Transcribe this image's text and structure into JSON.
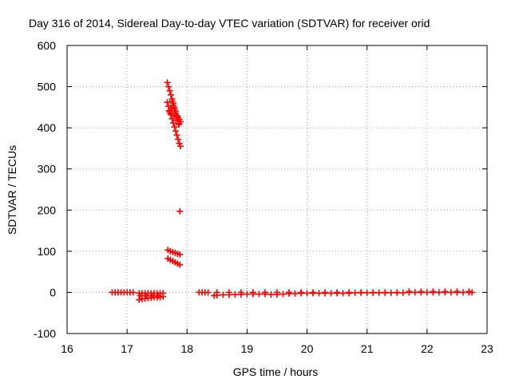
{
  "chart_data": {
    "type": "scatter",
    "title": "Day 316 of 2014, Sidereal Day-to-day VTEC variation (SDTVAR) for receiver orid",
    "xlabel": "GPS time / hours",
    "ylabel": "SDTVAR / TECUs",
    "xlim": [
      16,
      23
    ],
    "ylim": [
      -100,
      600
    ],
    "xticks": [
      "16",
      "17",
      "18",
      "19",
      "20",
      "21",
      "22",
      "23"
    ],
    "yticks": [
      "-100",
      "0",
      "100",
      "200",
      "300",
      "400",
      "500",
      "600"
    ],
    "grid": true,
    "legend": "none",
    "marker": "plus",
    "series": [
      {
        "color": "#ff0000",
        "points": [
          [
            16.75,
            0
          ],
          [
            16.8,
            0
          ],
          [
            16.85,
            0
          ],
          [
            16.9,
            0
          ],
          [
            16.95,
            0
          ],
          [
            17.0,
            0
          ],
          [
            17.05,
            0
          ],
          [
            17.1,
            0
          ],
          [
            17.2,
            -18
          ],
          [
            17.25,
            -16
          ],
          [
            17.3,
            -15
          ],
          [
            17.35,
            -14
          ],
          [
            17.4,
            -13
          ],
          [
            17.45,
            -12
          ],
          [
            17.5,
            -12
          ],
          [
            17.55,
            -12
          ],
          [
            17.6,
            -10
          ],
          [
            17.2,
            -2
          ],
          [
            17.25,
            -2
          ],
          [
            17.3,
            -2
          ],
          [
            17.35,
            -2
          ],
          [
            17.4,
            -2
          ],
          [
            17.45,
            -2
          ],
          [
            17.5,
            -2
          ],
          [
            17.55,
            -2
          ],
          [
            17.6,
            -2
          ],
          [
            17.22,
            -8
          ],
          [
            17.32,
            -8
          ],
          [
            17.42,
            -8
          ],
          [
            17.52,
            -8
          ],
          [
            17.67,
            510
          ],
          [
            17.69,
            500
          ],
          [
            17.71,
            490
          ],
          [
            17.73,
            480
          ],
          [
            17.75,
            470
          ],
          [
            17.77,
            460
          ],
          [
            17.79,
            450
          ],
          [
            17.81,
            440
          ],
          [
            17.83,
            430
          ],
          [
            17.85,
            420
          ],
          [
            17.87,
            410
          ],
          [
            17.67,
            462
          ],
          [
            17.69,
            452
          ],
          [
            17.71,
            442
          ],
          [
            17.73,
            432
          ],
          [
            17.75,
            422
          ],
          [
            17.77,
            412
          ],
          [
            17.79,
            402
          ],
          [
            17.81,
            392
          ],
          [
            17.83,
            382
          ],
          [
            17.85,
            372
          ],
          [
            17.87,
            362
          ],
          [
            17.89,
            355
          ],
          [
            17.75,
            465
          ],
          [
            17.77,
            455
          ],
          [
            17.79,
            445
          ],
          [
            17.81,
            435
          ],
          [
            17.83,
            428
          ],
          [
            17.85,
            425
          ],
          [
            17.87,
            420
          ],
          [
            17.89,
            415
          ],
          [
            17.7,
            440
          ],
          [
            17.72,
            436
          ],
          [
            17.74,
            448
          ],
          [
            17.78,
            430
          ],
          [
            17.82,
            418
          ],
          [
            17.86,
            408
          ],
          [
            17.88,
            197
          ],
          [
            17.68,
            103
          ],
          [
            17.72,
            100
          ],
          [
            17.76,
            98
          ],
          [
            17.8,
            96
          ],
          [
            17.84,
            94
          ],
          [
            17.88,
            92
          ],
          [
            17.68,
            82
          ],
          [
            17.72,
            79
          ],
          [
            17.76,
            76
          ],
          [
            17.8,
            73
          ],
          [
            17.84,
            70
          ],
          [
            17.88,
            67
          ],
          [
            18.2,
            0
          ],
          [
            18.25,
            0
          ],
          [
            18.3,
            0
          ],
          [
            18.35,
            0
          ],
          [
            18.45,
            -8
          ],
          [
            18.5,
            -7
          ],
          [
            18.6,
            -6
          ],
          [
            18.7,
            -6
          ],
          [
            18.8,
            -5
          ],
          [
            18.9,
            -5
          ],
          [
            19.0,
            -4
          ],
          [
            19.1,
            -4
          ],
          [
            19.2,
            -4
          ],
          [
            19.3,
            -4
          ],
          [
            19.4,
            -5
          ],
          [
            19.5,
            -5
          ],
          [
            19.6,
            -4
          ],
          [
            19.7,
            -3
          ],
          [
            19.8,
            -3
          ],
          [
            19.9,
            -2
          ],
          [
            20.0,
            -2
          ],
          [
            20.1,
            -2
          ],
          [
            20.2,
            -2
          ],
          [
            20.3,
            -2
          ],
          [
            20.4,
            -2
          ],
          [
            20.5,
            -2
          ],
          [
            20.6,
            -2
          ],
          [
            20.7,
            -2
          ],
          [
            20.8,
            -1
          ],
          [
            20.9,
            -1
          ],
          [
            21.0,
            -1
          ],
          [
            21.1,
            -1
          ],
          [
            21.2,
            -1
          ],
          [
            21.3,
            -1
          ],
          [
            21.4,
            -1
          ],
          [
            21.5,
            -1
          ],
          [
            21.6,
            -1
          ],
          [
            21.7,
            0
          ],
          [
            21.8,
            0
          ],
          [
            21.9,
            0
          ],
          [
            22.0,
            0
          ],
          [
            22.1,
            0
          ],
          [
            22.2,
            0
          ],
          [
            22.3,
            0
          ],
          [
            22.4,
            0
          ],
          [
            22.5,
            0
          ],
          [
            22.6,
            0
          ],
          [
            22.7,
            0
          ],
          [
            22.75,
            0
          ],
          [
            18.5,
            0
          ],
          [
            18.7,
            0
          ],
          [
            18.9,
            0
          ],
          [
            19.1,
            0
          ],
          [
            19.3,
            0
          ],
          [
            19.5,
            0
          ],
          [
            19.7,
            0
          ],
          [
            19.9,
            0
          ],
          [
            20.1,
            0
          ],
          [
            20.3,
            0
          ],
          [
            20.5,
            0
          ],
          [
            20.7,
            0
          ],
          [
            20.9,
            0
          ],
          [
            21.1,
            0
          ],
          [
            21.3,
            0
          ],
          [
            21.5,
            0
          ],
          [
            21.7,
            2
          ],
          [
            21.9,
            2
          ],
          [
            22.1,
            2
          ],
          [
            22.3,
            2
          ],
          [
            22.5,
            2
          ],
          [
            22.7,
            2
          ]
        ]
      }
    ]
  }
}
